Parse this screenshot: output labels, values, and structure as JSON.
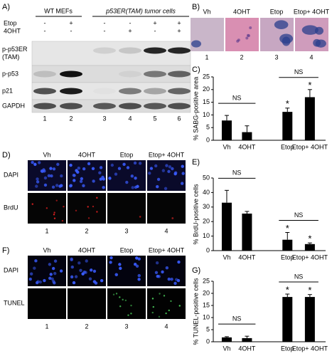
{
  "panels": {
    "A": {
      "label": "A)",
      "groups": [
        "WT MEFs",
        "p53ER(TAM) tumor cells"
      ],
      "treatments": [
        {
          "name": "Etop",
          "signs": [
            "-",
            "+",
            "-",
            "-",
            "+",
            "+"
          ]
        },
        {
          "name": "4OHT",
          "signs": [
            "-",
            "-",
            "-",
            "+",
            "-",
            "+"
          ]
        }
      ],
      "rows": [
        {
          "lines": [
            "p-p53ER",
            "(TAM)"
          ]
        },
        {
          "lines": [
            "p-p53"
          ]
        },
        {
          "lines": [
            "p21"
          ]
        },
        {
          "lines": [
            "GAPDH"
          ]
        }
      ],
      "lanes": [
        "1",
        "2",
        "3",
        "4",
        "5",
        "6"
      ]
    },
    "B": {
      "label": "B)",
      "columns": [
        "Vh",
        "4OHT",
        "Etop",
        "Etop+ 4OHT"
      ],
      "numbers": [
        "1",
        "2",
        "3",
        "4"
      ]
    },
    "D": {
      "label": "D)",
      "columns": [
        "Vh",
        "4OHT",
        "Etop",
        "Etop+ 4OHT"
      ],
      "rows": [
        "DAPI",
        "BrdU"
      ],
      "numbers": [
        "1",
        "2",
        "3",
        "4"
      ]
    },
    "F": {
      "label": "F)",
      "columns": [
        "Vh",
        "4OHT",
        "Etop",
        "Etop+ 4OHT"
      ],
      "rows": [
        "DAPI",
        "TUNEL"
      ],
      "numbers": [
        "1",
        "2",
        "3",
        "4"
      ]
    }
  },
  "chart_data": [
    {
      "type": "bar",
      "panel_label": "C)",
      "ylabel": "% SABG-positive area",
      "categories": [
        "Vh",
        "4OHT",
        "Etop",
        "Etop+ 4OHT"
      ],
      "values": [
        7.8,
        3.2,
        11.2,
        17
      ],
      "errors": [
        2,
        2.5,
        1.5,
        3
      ],
      "color": "#000000",
      "ylim": [
        0,
        25
      ],
      "yticks": [
        0,
        5,
        10,
        15,
        20,
        25
      ],
      "annotations": [
        {
          "text": "NS",
          "categories": [
            "Vh",
            "4OHT"
          ]
        },
        {
          "text": "NS",
          "categories": [
            "Etop",
            "Etop+ 4OHT"
          ]
        },
        {
          "text": "*",
          "categories": [
            "Etop"
          ]
        },
        {
          "text": "*",
          "categories": [
            "Etop+ 4OHT"
          ]
        }
      ]
    },
    {
      "type": "bar",
      "panel_label": "E)",
      "ylabel": "% BrdU-positive cells",
      "categories": [
        "Vh",
        "4OHT",
        "Etop",
        "Etop+ 4OHT"
      ],
      "values": [
        33,
        25.5,
        7.5,
        4.5
      ],
      "errors": [
        8.5,
        1.5,
        5,
        0.8
      ],
      "color": "#000000",
      "ylim": [
        0,
        50
      ],
      "yticks": [
        0,
        10,
        20,
        30,
        40,
        50
      ],
      "annotations": [
        {
          "text": "NS",
          "categories": [
            "Vh",
            "4OHT"
          ]
        },
        {
          "text": "NS",
          "categories": [
            "Etop",
            "Etop+ 4OHT"
          ]
        },
        {
          "text": "*",
          "categories": [
            "Etop"
          ]
        },
        {
          "text": "*",
          "categories": [
            "Etop+ 4OHT"
          ]
        }
      ]
    },
    {
      "type": "bar",
      "panel_label": "G)",
      "ylabel": "% TUNEL-positive cells",
      "categories": [
        "Vh",
        "4OHT",
        "Etop",
        "Etop+ 4OHT"
      ],
      "values": [
        1.8,
        1.5,
        18.5,
        18.5
      ],
      "errors": [
        0.3,
        0.8,
        1.2,
        1
      ],
      "color": "#000000",
      "ylim": [
        0,
        25
      ],
      "yticks": [
        0,
        5,
        10,
        15,
        20,
        25
      ],
      "annotations": [
        {
          "text": "NS",
          "categories": [
            "Vh",
            "4OHT"
          ]
        },
        {
          "text": "NS",
          "categories": [
            "Etop",
            "Etop+ 4OHT"
          ]
        },
        {
          "text": "*",
          "categories": [
            "Etop"
          ]
        },
        {
          "text": "*",
          "categories": [
            "Etop+ 4OHT"
          ]
        }
      ]
    }
  ]
}
